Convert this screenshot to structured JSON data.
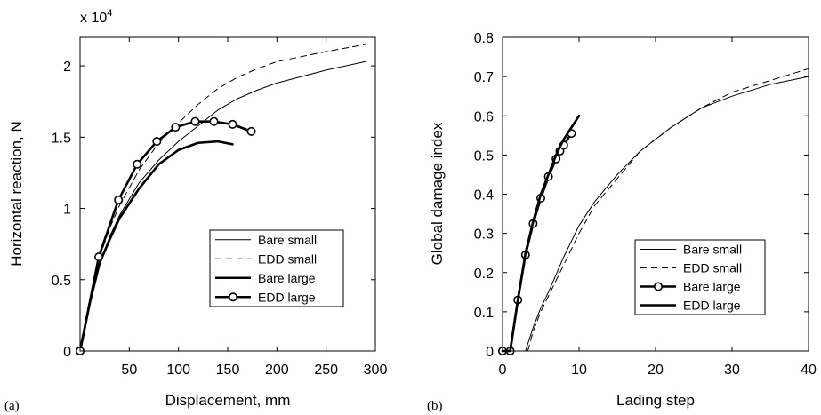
{
  "panels": [
    {
      "tag": "(a)"
    },
    {
      "tag": "(b)"
    }
  ],
  "chart_data": [
    {
      "type": "line",
      "xlabel": "Displacement, mm",
      "ylabel": "Horizontal reaction, N",
      "scale_label": "x 10",
      "scale_exponent": "4",
      "xlim": [
        0,
        300
      ],
      "ylim": [
        0,
        2.2
      ],
      "xticks": [
        "50",
        "100",
        "150",
        "200",
        "250",
        "300"
      ],
      "yticks": [
        "0",
        "0.5",
        "1",
        "1.5",
        "2"
      ],
      "legend_position": "lower-right",
      "series": [
        {
          "name": "Bare small",
          "style": "thin-solid",
          "marker": "none",
          "x": [
            0,
            10,
            20,
            30,
            40,
            60,
            80,
            100,
            120,
            140,
            160,
            180,
            200,
            250,
            290
          ],
          "y": [
            0,
            0.35,
            0.62,
            0.8,
            0.95,
            1.18,
            1.34,
            1.47,
            1.58,
            1.69,
            1.77,
            1.83,
            1.88,
            1.97,
            2.03
          ]
        },
        {
          "name": "EDD small",
          "style": "thin-dashed",
          "marker": "none",
          "x": [
            0,
            10,
            20,
            30,
            40,
            60,
            80,
            100,
            120,
            140,
            160,
            180,
            200,
            250,
            290
          ],
          "y": [
            0,
            0.37,
            0.66,
            0.86,
            1.02,
            1.27,
            1.46,
            1.6,
            1.73,
            1.84,
            1.92,
            1.98,
            2.03,
            2.1,
            2.15
          ]
        },
        {
          "name": "Bare large",
          "style": "thick-solid",
          "marker": "none",
          "x": [
            0,
            10,
            20,
            30,
            40,
            60,
            80,
            100,
            120,
            140,
            155
          ],
          "y": [
            0,
            0.34,
            0.62,
            0.78,
            0.93,
            1.14,
            1.31,
            1.41,
            1.46,
            1.47,
            1.45
          ]
        },
        {
          "name": "EDD large",
          "style": "thick-solid",
          "marker": "circle",
          "x": [
            0,
            19,
            39,
            58,
            78,
            97,
            117,
            136,
            155,
            174
          ],
          "y": [
            0,
            0.66,
            1.06,
            1.31,
            1.47,
            1.57,
            1.61,
            1.61,
            1.59,
            1.54
          ]
        }
      ]
    },
    {
      "type": "line",
      "xlabel": "Lading step",
      "ylabel": "Global damage index",
      "xlim": [
        0,
        40
      ],
      "ylim": [
        0,
        0.8
      ],
      "xticks": [
        "0",
        "10",
        "20",
        "30",
        "40"
      ],
      "yticks": [
        "0",
        "0.1",
        "0.2",
        "0.3",
        "0.4",
        "0.5",
        "0.6",
        "0.7",
        "0.8"
      ],
      "legend_position": "lower-right",
      "series": [
        {
          "name": "Bare small",
          "style": "thin-solid",
          "marker": "none",
          "x": [
            3,
            4,
            5,
            6,
            8,
            10,
            12,
            15,
            18,
            22,
            26,
            30,
            35,
            40
          ],
          "y": [
            0,
            0.06,
            0.11,
            0.15,
            0.24,
            0.32,
            0.38,
            0.45,
            0.51,
            0.57,
            0.62,
            0.65,
            0.68,
            0.7
          ]
        },
        {
          "name": "EDD small",
          "style": "thin-dashed",
          "marker": "none",
          "x": [
            3.3,
            4,
            5,
            6,
            8,
            10,
            12,
            15,
            18,
            22,
            26,
            30,
            35,
            40
          ],
          "y": [
            0,
            0.05,
            0.1,
            0.14,
            0.22,
            0.3,
            0.37,
            0.44,
            0.51,
            0.57,
            0.62,
            0.66,
            0.69,
            0.72
          ]
        },
        {
          "name": "Bare large",
          "style": "thick-solid",
          "marker": "circle",
          "x": [
            0,
            1,
            2,
            3,
            4,
            5,
            6,
            7,
            7.5,
            8,
            9
          ],
          "y": [
            0,
            0,
            0.13,
            0.245,
            0.325,
            0.39,
            0.445,
            0.49,
            0.51,
            0.525,
            0.555
          ]
        },
        {
          "name": "EDD large",
          "style": "thick-solid",
          "marker": "none",
          "x": [
            0,
            1,
            2,
            3,
            4,
            5,
            6,
            7,
            8,
            9,
            10
          ],
          "y": [
            0,
            0,
            0.13,
            0.25,
            0.33,
            0.4,
            0.45,
            0.5,
            0.54,
            0.57,
            0.6
          ]
        }
      ]
    }
  ]
}
